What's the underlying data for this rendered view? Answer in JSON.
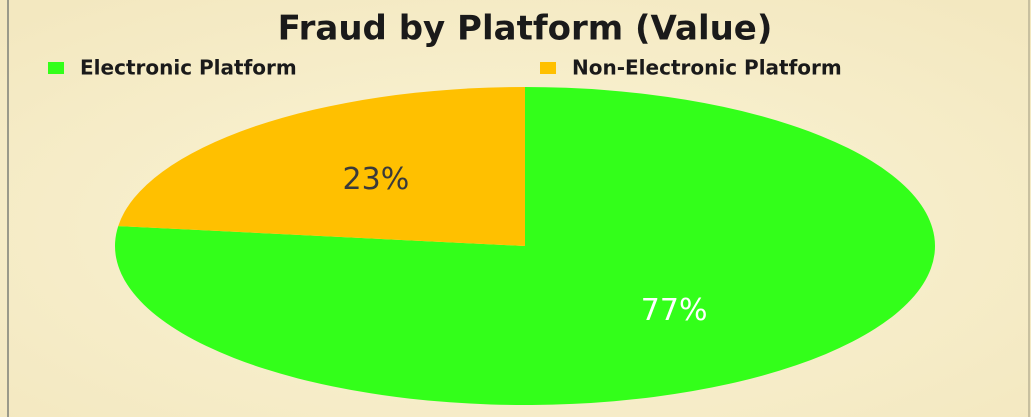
{
  "chart_data": {
    "type": "pie",
    "title": "Fraud by Platform (Value)",
    "categories": [
      "Electronic Platform",
      "Non-Electronic Platform"
    ],
    "values": [
      77,
      23
    ],
    "value_labels": [
      "77%",
      "23%"
    ],
    "colors": [
      "#33ff1a",
      "#ffc000"
    ],
    "label_colors": [
      "#ffffff",
      "#3a3a3a"
    ],
    "legend": "top"
  }
}
